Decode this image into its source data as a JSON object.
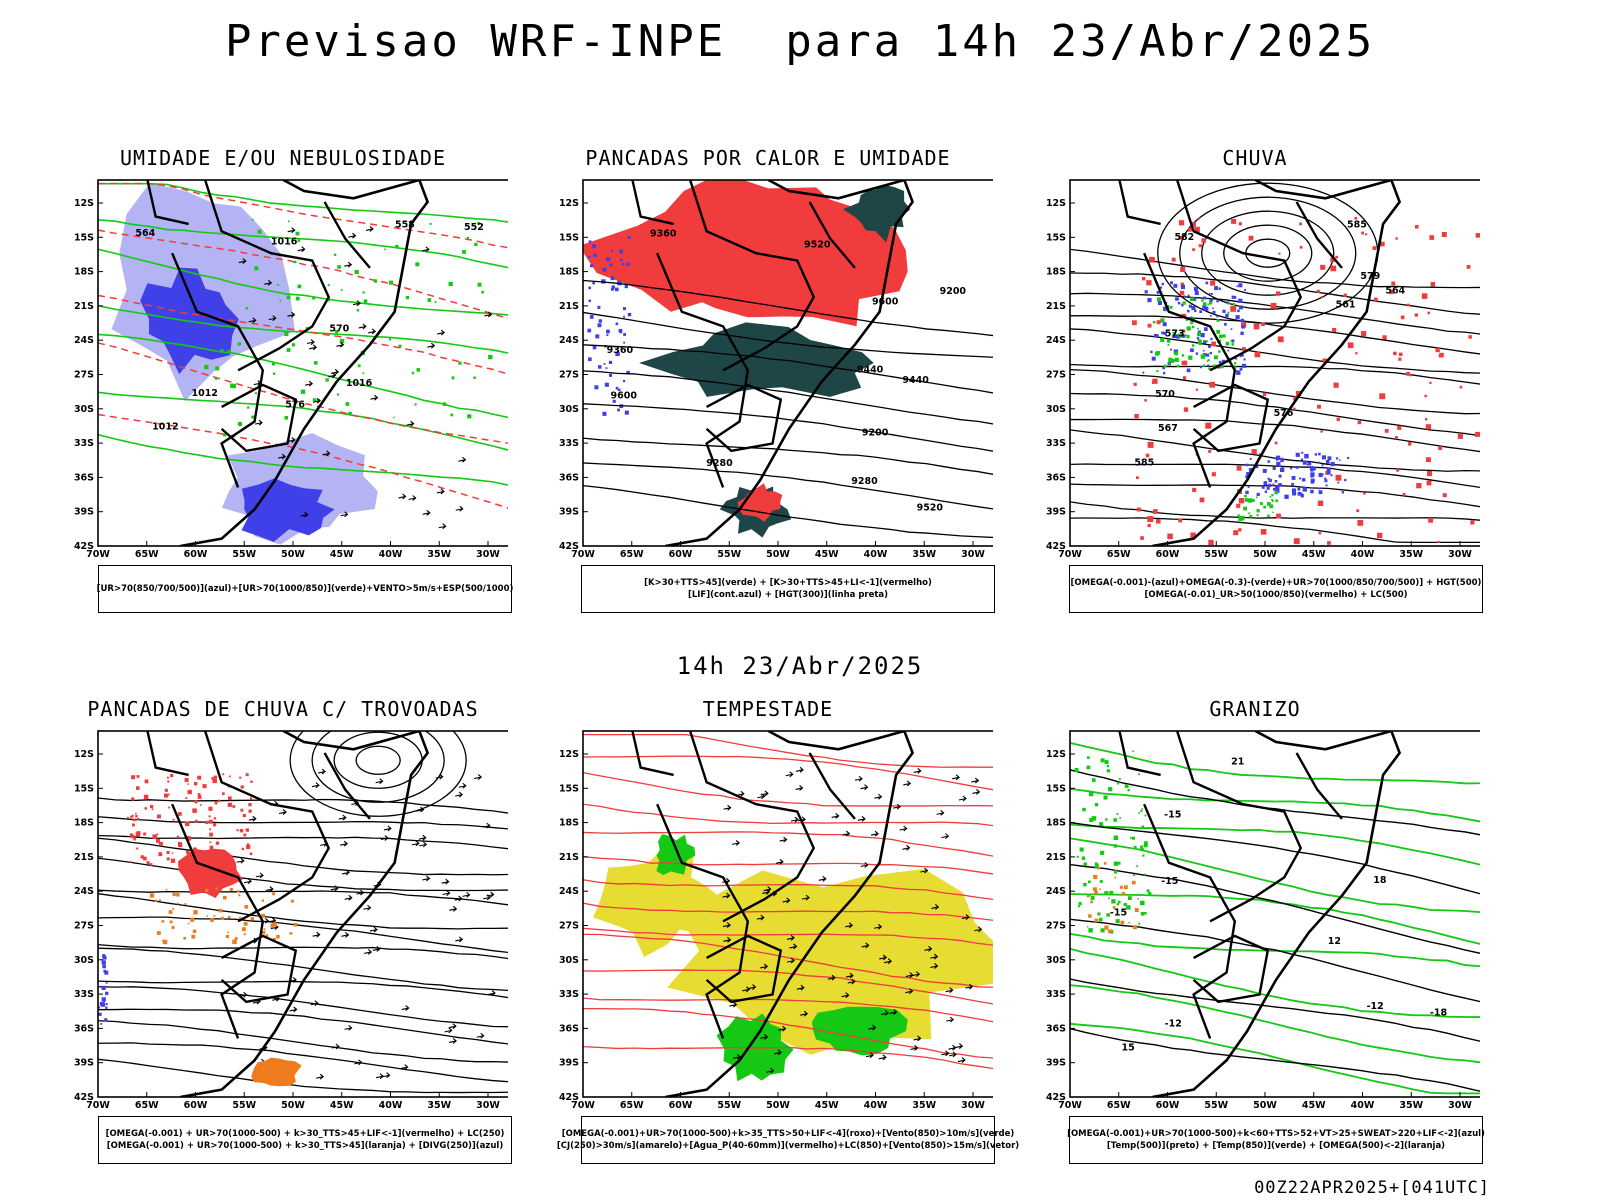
{
  "header": {
    "title": "Previsao WRF-INPE  para 14h 23/Abr/2025"
  },
  "mid_timestamp": "14h 23/Abr/2025",
  "footer_stamp": "00Z22APR2025+[041UTC]",
  "axes": {
    "lat_ticks": [
      "12S",
      "15S",
      "18S",
      "21S",
      "24S",
      "27S",
      "30S",
      "33S",
      "36S",
      "39S",
      "42S"
    ],
    "lon_ticks": [
      "70W",
      "65W",
      "60W",
      "55W",
      "50W",
      "45W",
      "40W",
      "35W",
      "30W"
    ]
  },
  "colors": {
    "red": "#f03c3c",
    "blue": "#4040e8",
    "lightblue": "#b4b4f4",
    "green": "#14c814",
    "darkgreen": "#1e4646",
    "yellow": "#e6dc32",
    "orange": "#ee7c1c",
    "black": "#000000"
  },
  "panels": [
    {
      "title": "UMIDADE E/OU NEBULOSIDADE",
      "caption": [
        "[UR>70(850/700/500)](azul)+[UR>70(1000/850)](verde)+VENTO>5m/s+ESP(500/1000)"
      ],
      "labels": [
        "1012",
        "1016",
        "576",
        "570",
        "564",
        "558",
        "552",
        "1012",
        "1016"
      ]
    },
    {
      "title": "PANCADAS POR CALOR E UMIDADE",
      "caption": [
        "[K>30+TTS>45](verde) + [K>30+TTS>45+LI<-1](vermelho)",
        "[LIF](cont.azul) + [HGT(300)](linha preta)"
      ],
      "labels": [
        "9600",
        "9520",
        "9440",
        "9360",
        "9280",
        "9200",
        "9600",
        "9520",
        "9440",
        "9360",
        "9280",
        "9200"
      ]
    },
    {
      "title": "CHUVA",
      "caption": [
        "[OMEGA(-0.001)-(azul)+OMEGA(-0.3)-(verde)+UR>70(1000/850/700/500)] + HGT(500)",
        "[OMEGA(-0.01)_UR>50(1000/850)(vermelho) + LC(500)"
      ],
      "labels": [
        "585",
        "585",
        "582",
        "579",
        "576",
        "573",
        "570",
        "567",
        "564",
        "561"
      ]
    },
    {
      "title": "PANCADAS DE CHUVA C/ TROVOADAS",
      "caption": [
        "[OMEGA(-0.001) + UR>70(1000-500) + k>30_TTS>45+LIF<-1](vermelho) + LC(250)",
        "[OMEGA(-0.001) + UR>70(1000-500) + k>30_TTS>45](laranja) + [DIVG(250)](azul)"
      ],
      "labels": []
    },
    {
      "title": "TEMPESTADE",
      "caption": [
        "[OMEGA(-0.001)+UR>70(1000-500)+k>35_TTS>50+LIF<-4](roxo)+[Vento(850)>10m/s](verde)",
        "[CJ(250)>30m/s](amarelo)+[Agua_P(40-60mm)](vermelho)+LC(850)+[Vento(850)>15m/s](vetor)"
      ],
      "labels": []
    },
    {
      "title": "GRANIZO",
      "caption": [
        "[OMEGA(-0.001)+UR>70(1000-500)+k<60+TTS>52+VT>25+SWEAT>220+LIF<-2](azul)",
        "[Temp(500)](preto) + [Temp(850)](verde) + [OMEGA(500)<-2](laranja)"
      ],
      "labels": [
        "-15",
        "-12",
        "-12",
        "-15",
        "-15",
        "-18",
        "12",
        "15",
        "18",
        "21"
      ]
    }
  ]
}
